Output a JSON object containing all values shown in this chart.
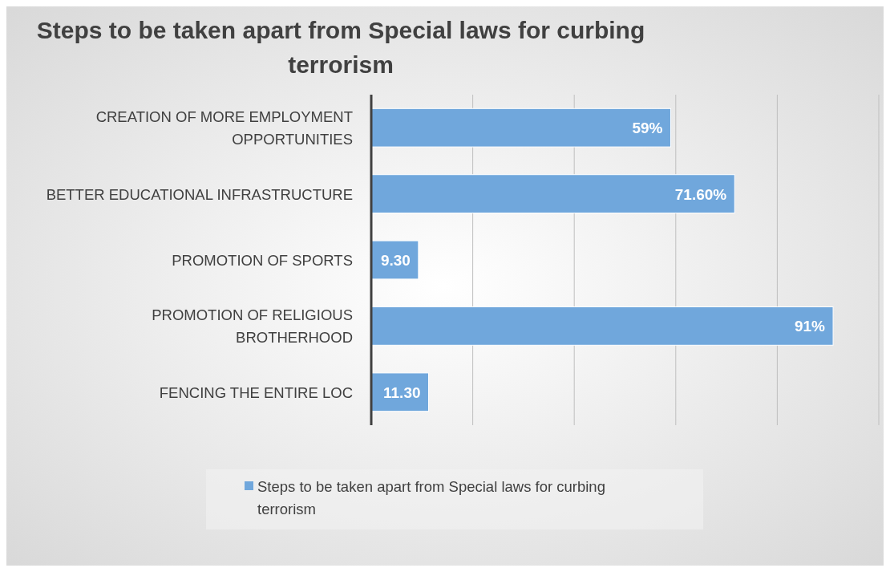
{
  "chart_data": {
    "type": "bar",
    "orientation": "horizontal",
    "title": "Steps to be taken apart from Special laws for curbing terrorism",
    "categories": [
      "CREATION OF MORE EMPLOYMENT OPPORTUNITIES",
      "BETTER EDUCATIONAL INFRASTRUCTURE",
      "PROMOTION OF SPORTS",
      "PROMOTION OF RELIGIOUS BROTHERHOOD",
      "FENCING THE ENTIRE LOC"
    ],
    "series": [
      {
        "name": "Steps to be taken apart from Special laws for curbing terrorism",
        "color": "#70a7dc",
        "values": [
          59,
          71.6,
          9.3,
          91,
          11.3
        ],
        "value_labels": [
          "59%",
          "71.60%",
          "9.30",
          "91%",
          "11.30"
        ]
      }
    ],
    "xlim": [
      0,
      100
    ],
    "xticks": [
      {
        "value": 0,
        "label": null
      },
      {
        "value": 20,
        "label": null
      },
      {
        "value": 40,
        "label": null
      },
      {
        "value": 60,
        "label": null
      },
      {
        "value": 80,
        "label": null
      },
      {
        "value": 100,
        "label": null
      }
    ],
    "grid": "x",
    "tick_labels": "y",
    "legend": "bottom"
  }
}
